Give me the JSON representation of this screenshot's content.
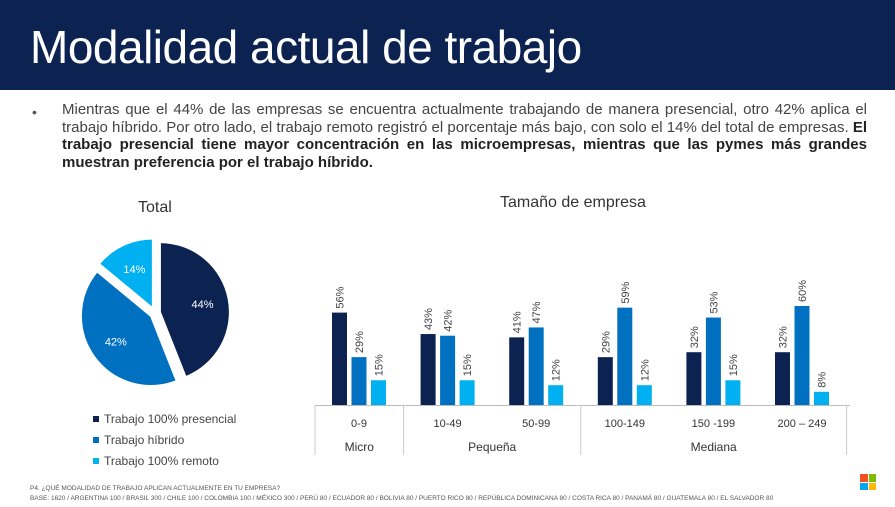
{
  "title": "Modalidad actual de trabajo",
  "bullet": "•",
  "paragraph": {
    "normal": "Mientras que el 44% de las empresas se encuentra actualmente trabajando de manera presencial, otro 42% aplica el trabajo híbrido. Por otro lado, el trabajo remoto registró el porcentaje más bajo, con solo el 14% del total de empresas. ",
    "bold": "El trabajo presencial tiene mayor concentración en las microempresas, mientras que las pymes más grandes muestran preferencia por el trabajo híbrido."
  },
  "colors": {
    "presencial": "#0c2352",
    "hibrido": "#0070c0",
    "remoto": "#00b0f0",
    "header": "#0c2352"
  },
  "chart_data": [
    {
      "type": "pie",
      "title": "Total",
      "slices": [
        {
          "name": "Trabajo 100% presencial",
          "value": 44,
          "label": "44%"
        },
        {
          "name": "Trabajo híbrido",
          "value": 42,
          "label": "42%"
        },
        {
          "name": "Trabajo 100% remoto",
          "value": 14,
          "label": "14%"
        }
      ],
      "legend": "bottom"
    },
    {
      "type": "bar",
      "title": "Tamaño de empresa",
      "categories": [
        "0-9",
        "10-49",
        "50-99",
        "100-149",
        "150 -199",
        "200 – 249"
      ],
      "groups": [
        {
          "label": "Micro",
          "span": 1
        },
        {
          "label": "Pequeña",
          "span": 2
        },
        {
          "label": "Mediana",
          "span": 3
        }
      ],
      "series": [
        {
          "name": "Trabajo 100% presencial",
          "values": [
            56,
            43,
            41,
            29,
            32,
            32
          ]
        },
        {
          "name": "Trabajo híbrido",
          "values": [
            29,
            42,
            47,
            59,
            53,
            60
          ]
        },
        {
          "name": "Trabajo 100% remoto",
          "values": [
            15,
            15,
            12,
            12,
            15,
            8
          ]
        }
      ],
      "data_labels": "percent",
      "ylim": [
        0,
        60
      ],
      "grid": false
    }
  ],
  "footer": {
    "question": "P4. ¿QUÉ MODALIDAD DE TRABAJO APLICAN ACTUALMENTE EN TU EMPRESA?",
    "base": "BASE: 1620 / ARGENTINA 100 / BRASIL 300 / CHILE 100 / COLOMBIA 100 / MÉXICO 300 / PERÚ 80 / ECUADOR 80 / BOLIVIA 80 / PUERTO RICO 80 / REPÚBLICA DOMINICANA 80 / COSTA RICA 80 / PANAMÁ 80 / GUATEMALA 80 / EL SALVADOR 80"
  },
  "logo_colors": [
    "#f25022",
    "#7fba00",
    "#00a4ef",
    "#ffb900"
  ]
}
